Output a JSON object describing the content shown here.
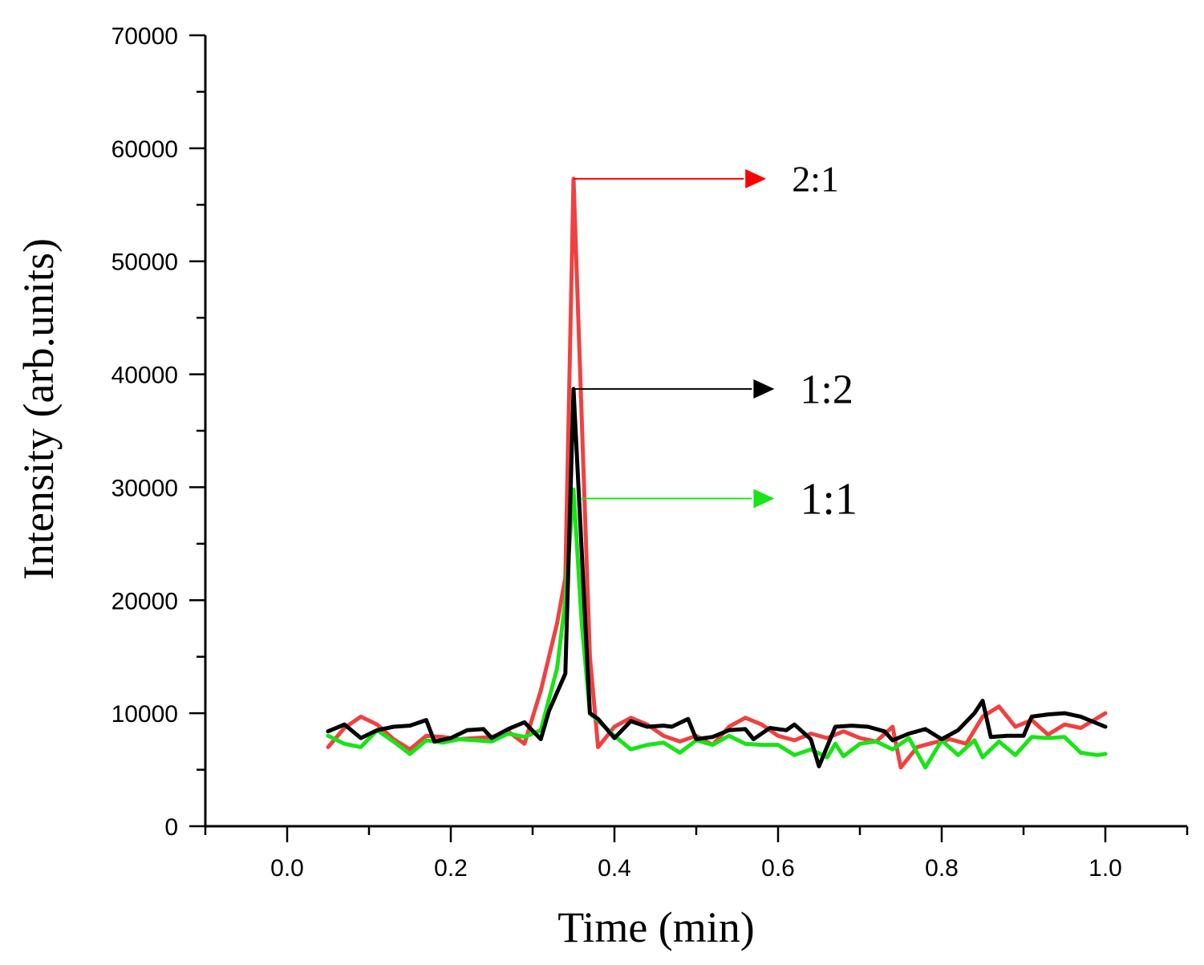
{
  "chart_data": {
    "type": "line",
    "title": "",
    "xlabel": "Time (min)",
    "ylabel": "Intensity (arb.units)",
    "xlim": [
      -0.1,
      1.1
    ],
    "ylim": [
      0,
      70000
    ],
    "x_ticks": [
      "0.0",
      "0.2",
      "0.4",
      "0.6",
      "0.8",
      "1.0"
    ],
    "y_ticks": [
      "0",
      "10000",
      "20000",
      "30000",
      "40000",
      "50000",
      "60000",
      "70000"
    ],
    "grid": false,
    "legend": "none",
    "series": [
      {
        "name": "2:1",
        "color": "#f04141",
        "points": [
          [
            0.05,
            7000
          ],
          [
            0.07,
            8700
          ],
          [
            0.09,
            9700
          ],
          [
            0.11,
            9000
          ],
          [
            0.13,
            7700
          ],
          [
            0.15,
            6800
          ],
          [
            0.17,
            8000
          ],
          [
            0.19,
            7900
          ],
          [
            0.21,
            7700
          ],
          [
            0.23,
            7800
          ],
          [
            0.25,
            7900
          ],
          [
            0.27,
            8400
          ],
          [
            0.29,
            7300
          ],
          [
            0.31,
            12000
          ],
          [
            0.33,
            18000
          ],
          [
            0.34,
            22000
          ],
          [
            0.35,
            57300
          ],
          [
            0.37,
            15000
          ],
          [
            0.38,
            7000
          ],
          [
            0.4,
            8800
          ],
          [
            0.42,
            9600
          ],
          [
            0.44,
            9000
          ],
          [
            0.46,
            8000
          ],
          [
            0.48,
            7500
          ],
          [
            0.5,
            8000
          ],
          [
            0.52,
            7200
          ],
          [
            0.54,
            8800
          ],
          [
            0.56,
            9600
          ],
          [
            0.58,
            9000
          ],
          [
            0.6,
            8000
          ],
          [
            0.62,
            7600
          ],
          [
            0.64,
            8200
          ],
          [
            0.66,
            7800
          ],
          [
            0.68,
            8400
          ],
          [
            0.7,
            7800
          ],
          [
            0.72,
            7500
          ],
          [
            0.74,
            8800
          ],
          [
            0.75,
            5200
          ],
          [
            0.77,
            7000
          ],
          [
            0.79,
            7400
          ],
          [
            0.81,
            7700
          ],
          [
            0.83,
            7300
          ],
          [
            0.85,
            9700
          ],
          [
            0.87,
            10600
          ],
          [
            0.89,
            8800
          ],
          [
            0.91,
            9400
          ],
          [
            0.93,
            8100
          ],
          [
            0.95,
            9000
          ],
          [
            0.97,
            8700
          ],
          [
            1.0,
            10000
          ]
        ]
      },
      {
        "name": "1:1",
        "color": "#18e418",
        "points": [
          [
            0.05,
            8000
          ],
          [
            0.07,
            7300
          ],
          [
            0.09,
            7000
          ],
          [
            0.11,
            8500
          ],
          [
            0.13,
            7500
          ],
          [
            0.15,
            6400
          ],
          [
            0.17,
            7600
          ],
          [
            0.19,
            7400
          ],
          [
            0.21,
            7700
          ],
          [
            0.23,
            7600
          ],
          [
            0.25,
            7500
          ],
          [
            0.27,
            8200
          ],
          [
            0.29,
            7900
          ],
          [
            0.31,
            8500
          ],
          [
            0.33,
            14000
          ],
          [
            0.34,
            20000
          ],
          [
            0.35,
            29800
          ],
          [
            0.36,
            18000
          ],
          [
            0.37,
            10000
          ],
          [
            0.4,
            8000
          ],
          [
            0.42,
            6800
          ],
          [
            0.44,
            7200
          ],
          [
            0.46,
            7400
          ],
          [
            0.48,
            6500
          ],
          [
            0.5,
            7600
          ],
          [
            0.52,
            7200
          ],
          [
            0.54,
            8000
          ],
          [
            0.56,
            7300
          ],
          [
            0.58,
            7200
          ],
          [
            0.6,
            7200
          ],
          [
            0.62,
            6300
          ],
          [
            0.64,
            6800
          ],
          [
            0.66,
            6100
          ],
          [
            0.67,
            7300
          ],
          [
            0.68,
            6200
          ],
          [
            0.7,
            7300
          ],
          [
            0.72,
            7500
          ],
          [
            0.74,
            6800
          ],
          [
            0.76,
            7800
          ],
          [
            0.78,
            5200
          ],
          [
            0.8,
            7600
          ],
          [
            0.82,
            6300
          ],
          [
            0.84,
            7600
          ],
          [
            0.85,
            6100
          ],
          [
            0.87,
            7500
          ],
          [
            0.89,
            6300
          ],
          [
            0.91,
            7900
          ],
          [
            0.93,
            7800
          ],
          [
            0.95,
            7900
          ],
          [
            0.97,
            6500
          ],
          [
            0.99,
            6300
          ],
          [
            1.0,
            6400
          ]
        ]
      },
      {
        "name": "1:2",
        "color": "#000000",
        "points": [
          [
            0.05,
            8400
          ],
          [
            0.07,
            9000
          ],
          [
            0.09,
            7800
          ],
          [
            0.11,
            8500
          ],
          [
            0.13,
            8800
          ],
          [
            0.15,
            8900
          ],
          [
            0.17,
            9400
          ],
          [
            0.18,
            7500
          ],
          [
            0.2,
            7800
          ],
          [
            0.22,
            8500
          ],
          [
            0.24,
            8600
          ],
          [
            0.25,
            7800
          ],
          [
            0.27,
            8600
          ],
          [
            0.29,
            9200
          ],
          [
            0.31,
            7700
          ],
          [
            0.32,
            10200
          ],
          [
            0.34,
            13500
          ],
          [
            0.35,
            38700
          ],
          [
            0.37,
            10000
          ],
          [
            0.38,
            9500
          ],
          [
            0.4,
            7800
          ],
          [
            0.42,
            9300
          ],
          [
            0.44,
            8800
          ],
          [
            0.46,
            8900
          ],
          [
            0.47,
            8800
          ],
          [
            0.49,
            9500
          ],
          [
            0.5,
            7700
          ],
          [
            0.52,
            7900
          ],
          [
            0.54,
            8500
          ],
          [
            0.56,
            8600
          ],
          [
            0.57,
            7700
          ],
          [
            0.59,
            8700
          ],
          [
            0.61,
            8500
          ],
          [
            0.62,
            9000
          ],
          [
            0.64,
            7700
          ],
          [
            0.65,
            5300
          ],
          [
            0.67,
            8800
          ],
          [
            0.69,
            8900
          ],
          [
            0.71,
            8800
          ],
          [
            0.73,
            8400
          ],
          [
            0.74,
            7600
          ],
          [
            0.76,
            8200
          ],
          [
            0.78,
            8600
          ],
          [
            0.8,
            7700
          ],
          [
            0.82,
            8500
          ],
          [
            0.84,
            10000
          ],
          [
            0.85,
            11100
          ],
          [
            0.86,
            7900
          ],
          [
            0.88,
            8000
          ],
          [
            0.9,
            8000
          ],
          [
            0.91,
            9700
          ],
          [
            0.93,
            9900
          ],
          [
            0.95,
            10000
          ],
          [
            0.97,
            9700
          ],
          [
            1.0,
            8800
          ]
        ]
      }
    ],
    "annotations": [
      {
        "series": "2:1",
        "label": "2:1",
        "color": "#ff0000",
        "value": 57300,
        "x_start": 0.35,
        "x_end": 0.56,
        "font_size": 46
      },
      {
        "series": "1:2",
        "label": "1:2",
        "color": "#000000",
        "value": 38700,
        "x_start": 0.35,
        "x_end": 0.57,
        "font_size": 52
      },
      {
        "series": "1:1",
        "label": "1:1",
        "color": "#18e418",
        "value": 29000,
        "x_start": 0.36,
        "x_end": 0.57,
        "font_size": 56
      }
    ]
  }
}
